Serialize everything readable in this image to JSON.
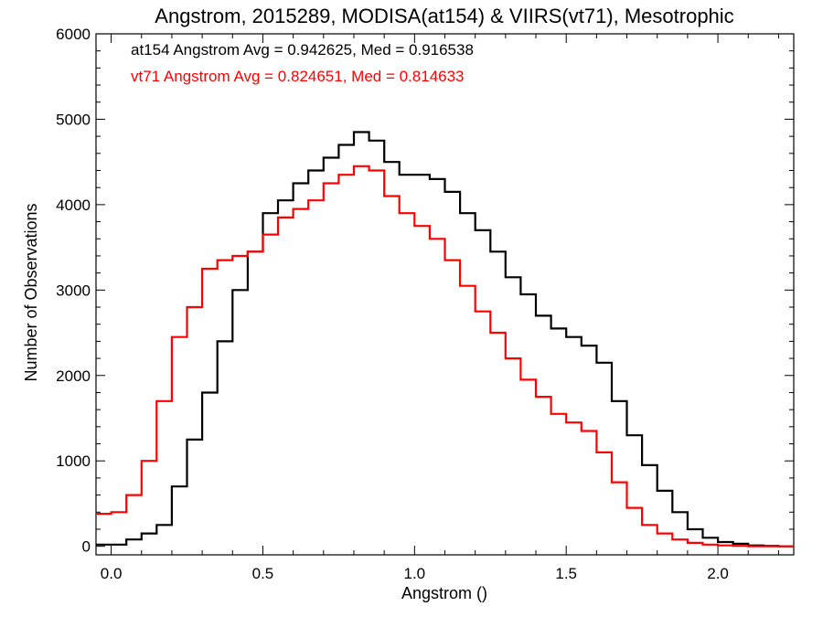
{
  "chart_data": {
    "type": "line",
    "title": "Angstrom, 2015289, MODISA(at154) & VIIRS(vt71), Mesotrophic",
    "xlabel": "Angstrom ()",
    "ylabel": "Number of Observations",
    "xlim": [
      -0.05,
      2.25
    ],
    "ylim": [
      -100,
      6000
    ],
    "xticks": [
      0.0,
      0.5,
      1.0,
      1.5,
      2.0
    ],
    "xtick_labels": [
      "0.0",
      "0.5",
      "1.0",
      "1.5",
      "2.0"
    ],
    "yticks": [
      0,
      1000,
      2000,
      3000,
      4000,
      5000,
      6000
    ],
    "ytick_labels": [
      "0",
      "1000",
      "2000",
      "3000",
      "4000",
      "5000",
      "6000"
    ],
    "grid": false,
    "step": true,
    "annotations": [
      {
        "text": "at154 Angstrom Avg = 0.942625, Med = 0.916538",
        "color": "#000000"
      },
      {
        "text": "vt71 Angstrom Avg = 0.824651, Med = 0.814633",
        "color": "#ff0000"
      }
    ],
    "series": [
      {
        "color": "#000000",
        "x": [
          -0.05,
          0.0,
          0.05,
          0.1,
          0.15,
          0.2,
          0.25,
          0.3,
          0.35,
          0.4,
          0.45,
          0.5,
          0.55,
          0.6,
          0.65,
          0.7,
          0.75,
          0.8,
          0.85,
          0.9,
          0.95,
          1.0,
          1.05,
          1.1,
          1.15,
          1.2,
          1.25,
          1.3,
          1.35,
          1.4,
          1.45,
          1.5,
          1.55,
          1.6,
          1.65,
          1.7,
          1.75,
          1.8,
          1.85,
          1.9,
          1.95,
          2.0,
          2.05,
          2.1,
          2.15,
          2.2,
          2.25
        ],
        "y": [
          20,
          20,
          80,
          150,
          250,
          700,
          1250,
          1800,
          2400,
          3000,
          3450,
          3900,
          4050,
          4250,
          4400,
          4550,
          4700,
          4850,
          4750,
          4500,
          4350,
          4350,
          4300,
          4150,
          3900,
          3700,
          3450,
          3150,
          2950,
          2700,
          2550,
          2450,
          2350,
          2150,
          1700,
          1300,
          950,
          650,
          400,
          200,
          100,
          50,
          30,
          10,
          5,
          0,
          0
        ]
      },
      {
        "color": "#ff0000",
        "x": [
          -0.05,
          0.0,
          0.05,
          0.1,
          0.15,
          0.2,
          0.25,
          0.3,
          0.35,
          0.4,
          0.45,
          0.5,
          0.55,
          0.6,
          0.65,
          0.7,
          0.75,
          0.8,
          0.85,
          0.9,
          0.95,
          1.0,
          1.05,
          1.1,
          1.15,
          1.2,
          1.25,
          1.3,
          1.35,
          1.4,
          1.45,
          1.5,
          1.55,
          1.6,
          1.65,
          1.7,
          1.75,
          1.8,
          1.85,
          1.9,
          1.95,
          2.0,
          2.05,
          2.1,
          2.15,
          2.2,
          2.25
        ],
        "y": [
          380,
          400,
          600,
          1000,
          1700,
          2450,
          2800,
          3250,
          3350,
          3400,
          3450,
          3650,
          3850,
          3950,
          4050,
          4250,
          4350,
          4450,
          4400,
          4100,
          3900,
          3750,
          3600,
          3350,
          3050,
          2750,
          2500,
          2200,
          1950,
          1750,
          1550,
          1450,
          1350,
          1100,
          750,
          450,
          250,
          150,
          80,
          40,
          20,
          10,
          5,
          0,
          0,
          0,
          0
        ]
      }
    ]
  }
}
